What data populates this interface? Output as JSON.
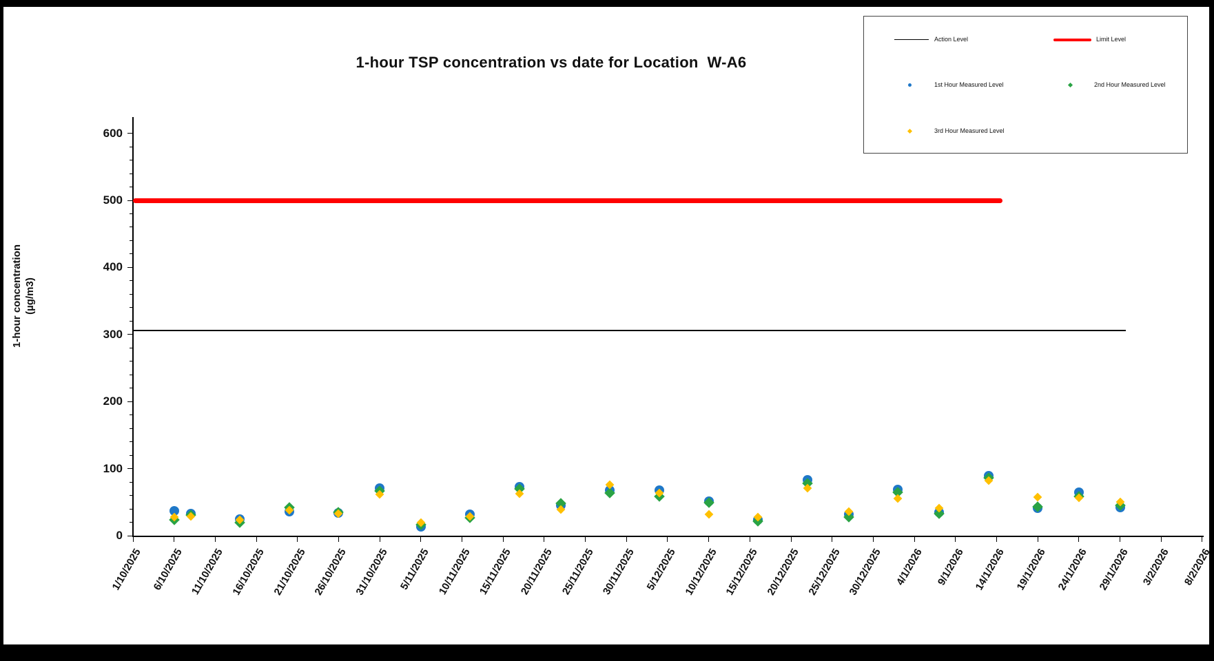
{
  "title": "1-hour TSP concentration vs date for Location  W-A6",
  "y_axis": {
    "label_line1": "1-hour concentration",
    "label_line2": "(µg/m3)",
    "tick_labels": [
      "0",
      "100",
      "200",
      "300",
      "400",
      "500",
      "600"
    ]
  },
  "x_axis": {
    "tick_labels": [
      "1/10/2025",
      "6/10/2025",
      "11/10/2025",
      "16/10/2025",
      "21/10/2025",
      "26/10/2025",
      "31/10/2025",
      "5/11/2025",
      "10/11/2025",
      "15/11/2025",
      "20/11/2025",
      "25/11/2025",
      "30/11/2025",
      "5/12/2025",
      "10/12/2025",
      "15/12/2025",
      "20/12/2025",
      "25/12/2025",
      "30/12/2025",
      "4/1/2026",
      "9/1/2026",
      "14/1/2026",
      "19/1/2026",
      "24/1/2026",
      "29/1/2026",
      "3/2/2026",
      "8/2/2026"
    ]
  },
  "legend": {
    "items": [
      {
        "label": "Action Level",
        "marker": "line",
        "color": "#000000"
      },
      {
        "label": "Limit Level",
        "marker": "line-thick",
        "color": "#ff0000"
      },
      {
        "label": "1st Hour Measured Level",
        "marker": "dot",
        "color": "#1f78c8"
      },
      {
        "label": "2nd Hour Measured Level",
        "marker": "dot",
        "color": "#2aa344"
      },
      {
        "label": "3rd Hour Measured Level",
        "marker": "dot",
        "color": "#ffc000"
      }
    ]
  },
  "colors": {
    "hour1": "#1f78c8",
    "hour2": "#2aa344",
    "hour3": "#ffc000",
    "limit": "#ff0000",
    "action": "#000000"
  },
  "chart_data": {
    "type": "scatter",
    "title": "1-hour TSP concentration vs date for Location  W-A6",
    "xlabel": "",
    "ylabel": "1-hour concentration (µg/m3)",
    "ylim": [
      0,
      600
    ],
    "y_tick_step": 100,
    "x_start": "1/10/2025",
    "x_end": "8/2/2026",
    "x_tick_interval_days": 5,
    "legend_position": "top-right",
    "grid": false,
    "reference_lines": {
      "action_level": 306,
      "limit_level": 500
    },
    "series_names": [
      "1st Hour Measured Level",
      "2nd Hour Measured Level",
      "3rd Hour Measured Level"
    ],
    "points": [
      {
        "date": "6/10/2025",
        "hour1": 37,
        "hour2": 24,
        "hour3": 28
      },
      {
        "date": "8/10/2025",
        "hour1": 33,
        "hour2": 31,
        "hour3": 29
      },
      {
        "date": "14/10/2025",
        "hour1": 25,
        "hour2": 20,
        "hour3": 24
      },
      {
        "date": "20/10/2025",
        "hour1": 36,
        "hour2": 42,
        "hour3": 38
      },
      {
        "date": "26/10/2025",
        "hour1": 34,
        "hour2": 35,
        "hour3": 33
      },
      {
        "date": "31/10/2025",
        "hour1": 71,
        "hour2": 67,
        "hour3": 62
      },
      {
        "date": "5/11/2025",
        "hour1": 13,
        "hour2": 16,
        "hour3": 19
      },
      {
        "date": "11/11/2025",
        "hour1": 32,
        "hour2": 27,
        "hour3": 29
      },
      {
        "date": "17/11/2025",
        "hour1": 73,
        "hour2": 70,
        "hour3": 63
      },
      {
        "date": "22/11/2025",
        "hour1": 45,
        "hour2": 48,
        "hour3": 39
      },
      {
        "date": "28/11/2025",
        "hour1": 68,
        "hour2": 64,
        "hour3": 76
      },
      {
        "date": "4/12/2025",
        "hour1": 68,
        "hour2": 59,
        "hour3": 64
      },
      {
        "date": "10/12/2025",
        "hour1": 51,
        "hour2": 49,
        "hour3": 32
      },
      {
        "date": "16/12/2025",
        "hour1": 24,
        "hour2": 22,
        "hour3": 28
      },
      {
        "date": "22/12/2025",
        "hour1": 83,
        "hour2": 78,
        "hour3": 71
      },
      {
        "date": "27/12/2025",
        "hour1": 32,
        "hour2": 28,
        "hour3": 36
      },
      {
        "date": "2/1/2026",
        "hour1": 69,
        "hour2": 65,
        "hour3": 55
      },
      {
        "date": "7/1/2026",
        "hour1": 35,
        "hour2": 33,
        "hour3": 41
      },
      {
        "date": "13/1/2026",
        "hour1": 89,
        "hour2": 86,
        "hour3": 82
      },
      {
        "date": "19/1/2026",
        "hour1": 41,
        "hour2": 43,
        "hour3": 57
      },
      {
        "date": "24/1/2026",
        "hour1": 65,
        "hour2": 59,
        "hour3": 56
      },
      {
        "date": "29/1/2026",
        "hour1": 42,
        "hour2": 45,
        "hour3": 50
      }
    ]
  }
}
